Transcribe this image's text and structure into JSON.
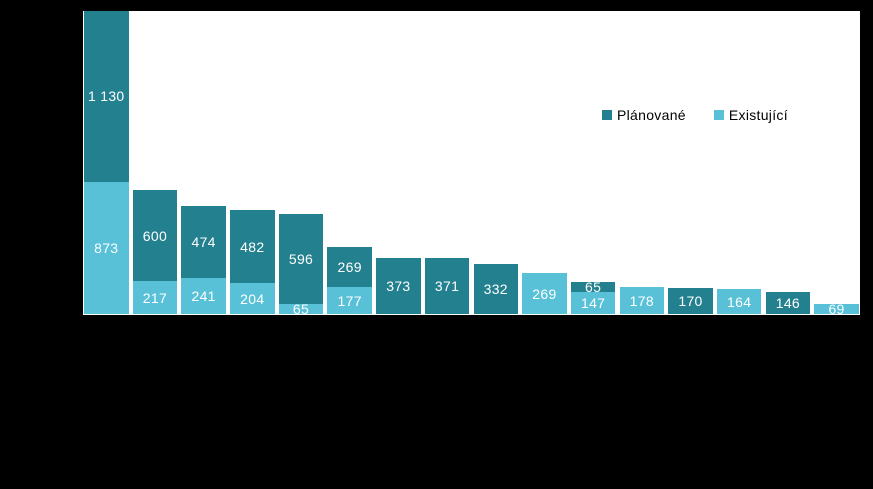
{
  "page": {
    "background_color": "#000000",
    "plot_background_color": "#ffffff"
  },
  "legend": {
    "entries": [
      {
        "label": "Plánované"
      },
      {
        "label": "Existující"
      }
    ]
  },
  "chart_data": {
    "type": "bar",
    "stacked": true,
    "orientation": "vertical",
    "grid": false,
    "legend_position": "top-right",
    "ylim": [
      0,
      2003
    ],
    "label_color": "#ffffff",
    "series": [
      {
        "id": "planned",
        "name": "Plánované",
        "color": "#23808F",
        "values": [
          1130,
          600,
          474,
          482,
          596,
          269,
          373,
          371,
          332,
          null,
          65,
          null,
          170,
          null,
          146,
          null
        ],
        "labels": [
          "1 130",
          "600",
          "474",
          "482",
          "596",
          "269",
          "373",
          "371",
          "332",
          null,
          "65",
          null,
          "170",
          null,
          "146",
          null
        ]
      },
      {
        "id": "existing",
        "name": "Existující",
        "color": "#58C1D8",
        "values": [
          873,
          217,
          241,
          204,
          65,
          177,
          null,
          null,
          null,
          269,
          147,
          178,
          null,
          164,
          null,
          69
        ],
        "labels": [
          "873",
          "217",
          "241",
          "204",
          "65",
          "177",
          null,
          null,
          null,
          "269",
          "147",
          "178",
          null,
          "164",
          null,
          "69"
        ]
      }
    ]
  }
}
